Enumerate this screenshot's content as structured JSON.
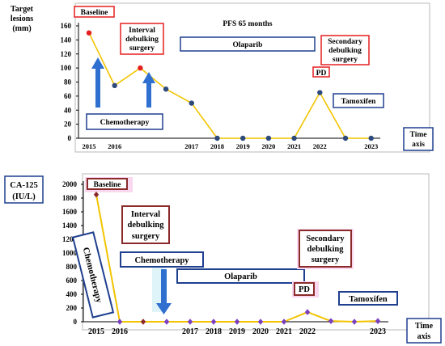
{
  "chart_data": [
    {
      "type": "line",
      "ylabel": "Target lesions (mm)",
      "ylabel_lines": [
        "Target",
        "lesions",
        "(mm)"
      ],
      "xlabel": "Time axis",
      "xlabel_lines": [
        "Time",
        "axis"
      ],
      "ylim": [
        0,
        160
      ],
      "yticks": [
        "0",
        "20",
        "40",
        "60",
        "80",
        "100",
        "120",
        "140",
        "160"
      ],
      "x_tick_labels": [
        "2015",
        "2016",
        "",
        "",
        "2017",
        "2018",
        "2019",
        "2020",
        "2021",
        "2022",
        "",
        "2023"
      ],
      "series": [
        {
          "values": [
            150,
            75,
            100,
            70,
            50,
            0,
            0,
            0,
            0,
            65,
            0,
            0
          ],
          "marker_colors": [
            "#e51f1f",
            "#2e4a7a",
            "#e51f1f",
            "#2e4a7a",
            "#2e4a7a",
            "#2e4a7a",
            "#2e4a7a",
            "#2e4a7a",
            "#2e4a7a",
            "#2e4a7a",
            "#2e4a7a",
            "#2e4a7a"
          ]
        }
      ],
      "grid": false,
      "annotations": {
        "baseline": "Baseline",
        "interval": [
          "Interval",
          "debulking",
          "surgery"
        ],
        "pfs": "PFS 65 months",
        "olaparib": "Olaparib",
        "secondary": [
          "Secondary",
          "debulking",
          "surgery"
        ],
        "pd": "PD",
        "tamoxifen": "Tamoxifen",
        "chemotherapy": "Chemotherapy"
      }
    },
    {
      "type": "line",
      "ylabel": "CA-125 (IU/L)",
      "ylabel_lines": [
        "CA-125",
        "(IU/L)"
      ],
      "xlabel": "Time axis",
      "xlabel_lines": [
        "Time",
        "axis"
      ],
      "ylim": [
        0,
        2000
      ],
      "yticks": [
        "0",
        "200",
        "400",
        "600",
        "800",
        "1000",
        "1200",
        "1400",
        "1600",
        "1800",
        "2000"
      ],
      "x_tick_labels": [
        "2015",
        "2016",
        "",
        "",
        "2017",
        "2018",
        "2019",
        "2020",
        "2021",
        "2022",
        "",
        "",
        "2023"
      ],
      "series": [
        {
          "values": [
            1850,
            0,
            0,
            0,
            0,
            0,
            0,
            0,
            0,
            140,
            10,
            0,
            10
          ],
          "marker_colors": [
            "#8b2a2a",
            "#7a3fbf",
            "#8b2a2a",
            "#7a3fbf",
            "#7a3fbf",
            "#7a3fbf",
            "#7a3fbf",
            "#7a3fbf",
            "#7a3fbf",
            "#7a3fbf",
            "#7a3fbf",
            "#7a3fbf",
            "#7a3fbf"
          ]
        }
      ],
      "grid": false,
      "annotations": {
        "baseline": "Baseline",
        "interval": [
          "Interval",
          "debulking",
          "surgery"
        ],
        "chemo_vertical": "Chemotherapy",
        "chemotherapy": "Chemotherapy",
        "olaparib": "Olaparib",
        "secondary": [
          "Secondary",
          "debulking",
          "surgery"
        ],
        "pd": "PD",
        "tamoxifen": "Tamoxifen"
      }
    }
  ],
  "colors": {
    "line": "#f2c400",
    "blue_box": "#1f3f8f",
    "red_box": "#e51f1f",
    "dark_red_box": "#8b2a2a",
    "arrow": "#2f6fd0",
    "pink_glow": "#f8d7ef",
    "frame": "#b8b8b8"
  }
}
